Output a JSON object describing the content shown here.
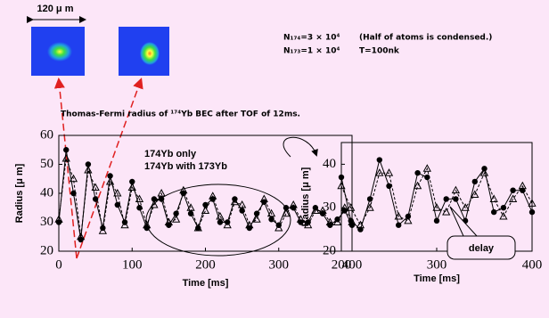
{
  "scale_label": "120 μ m",
  "info": [
    "N₁₇₄=3 × 10⁴",
    "(Half of atoms is condensed.)",
    "N₁₇₃=1 × 10⁴",
    "T=100nk"
  ],
  "caption": "Thomas-Fermi radius of ¹⁷⁴Yb BEC after TOF of 12ms.",
  "chart_data": [
    {
      "type": "line",
      "xlabel": "Time [ms]",
      "ylabel": "Radius [μ m]",
      "xlim": [
        0,
        400
      ],
      "xticks": [
        0,
        100,
        200,
        300,
        400
      ],
      "ylim": [
        20,
        60
      ],
      "yticks": [
        20,
        30,
        40,
        50,
        60
      ],
      "x": [
        0,
        10,
        20,
        30,
        40,
        50,
        60,
        70,
        80,
        90,
        100,
        110,
        120,
        130,
        140,
        150,
        160,
        170,
        180,
        190,
        200,
        210,
        220,
        230,
        240,
        250,
        260,
        270,
        280,
        290,
        300,
        310,
        320,
        330,
        340,
        350,
        360,
        370,
        380,
        390,
        400
      ],
      "series": [
        {
          "name": "174Yb only",
          "color": "#000000",
          "marker": "circle",
          "dashed": false,
          "values": [
            30,
            55,
            40,
            24,
            50,
            38,
            28,
            46,
            36,
            30,
            44,
            35,
            28,
            38,
            38,
            29,
            33,
            40,
            33,
            28,
            36,
            38,
            30,
            30,
            38,
            34,
            28,
            33,
            37,
            31,
            29,
            35,
            35,
            30,
            30,
            35,
            33,
            29,
            31,
            34,
            29
          ]
        },
        {
          "name": "174Yb with 173Yb",
          "color": "#000000",
          "marker": "triangle",
          "dashed": true,
          "values": [
            31,
            52,
            45,
            25,
            48,
            42,
            27,
            44,
            40,
            29,
            42,
            38,
            29,
            36,
            40,
            30,
            31,
            41,
            35,
            28,
            34,
            39,
            32,
            29,
            37,
            36,
            29,
            31,
            38,
            33,
            28,
            33,
            36,
            31,
            29,
            34,
            34,
            30,
            30,
            35,
            30
          ]
        }
      ]
    },
    {
      "type": "line",
      "xlabel": "Time [ms]",
      "ylabel": "Radius [μ m]",
      "annotation": "delay",
      "xlim": [
        200,
        400
      ],
      "xticks": [
        200,
        300,
        400
      ],
      "ylim": [
        20,
        45
      ],
      "yticks": [
        20,
        30,
        40
      ],
      "x": [
        200,
        210,
        220,
        230,
        240,
        250,
        260,
        270,
        280,
        290,
        300,
        310,
        320,
        330,
        340,
        350,
        360,
        370,
        380,
        390,
        400
      ],
      "series": [
        {
          "color": "#000000",
          "marker": "circle",
          "dashed": false,
          "values": [
            37,
            27,
            25,
            32,
            41,
            35,
            26,
            28,
            38,
            37,
            27,
            32,
            32,
            27,
            36,
            39,
            29,
            30,
            34,
            34,
            29
          ]
        },
        {
          "color": "#000000",
          "marker": "triangle",
          "dashed": true,
          "values": [
            35,
            30,
            26,
            30,
            38,
            38,
            28,
            27,
            35,
            39,
            30,
            29,
            34,
            30,
            33,
            38,
            32,
            28,
            32,
            35,
            31
          ]
        }
      ]
    }
  ]
}
